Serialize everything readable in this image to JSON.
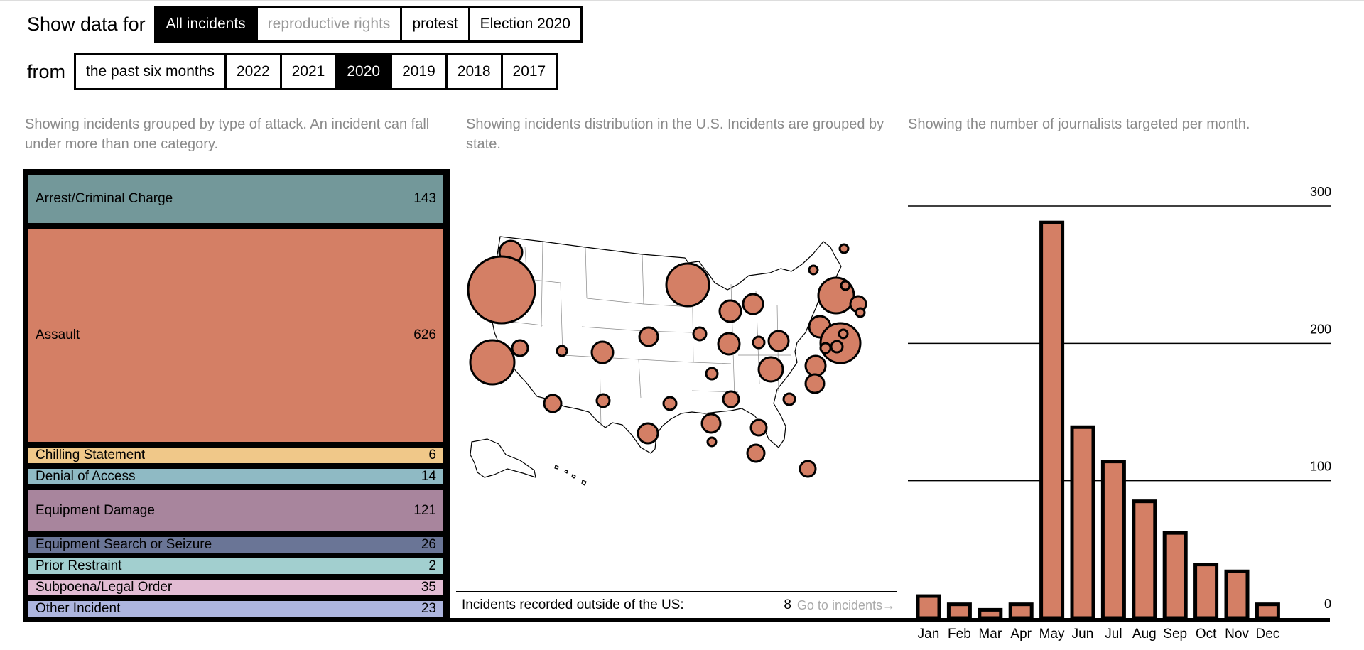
{
  "filters": {
    "show_label": "Show data for",
    "topics": [
      {
        "label": "All incidents",
        "active": true,
        "muted": false
      },
      {
        "label": "reproductive rights",
        "active": false,
        "muted": true
      },
      {
        "label": "protest",
        "active": false,
        "muted": false
      },
      {
        "label": "Election 2020",
        "active": false,
        "muted": false
      }
    ],
    "from_label": "from",
    "periods": [
      {
        "label": "the past six months",
        "active": false
      },
      {
        "label": "2022",
        "active": false
      },
      {
        "label": "2021",
        "active": false
      },
      {
        "label": "2020",
        "active": true
      },
      {
        "label": "2019",
        "active": false
      },
      {
        "label": "2018",
        "active": false
      },
      {
        "label": "2017",
        "active": false
      }
    ]
  },
  "descriptions": {
    "categories": "Showing incidents grouped by type of attack. An incident can fall under more than one category.",
    "map": "Showing incidents distribution in the U.S. Incidents are grouped by state.",
    "monthly": "Showing the number of journalists targeted per month."
  },
  "categories": [
    {
      "label": "Arrest/Criminal Charge",
      "count": 143,
      "color": "#73989a"
    },
    {
      "label": "Assault",
      "count": 626,
      "color": "#d47f65"
    },
    {
      "label": "Chilling Statement",
      "count": 6,
      "color": "#f0c889"
    },
    {
      "label": "Denial of Access",
      "count": 14,
      "color": "#8fbac4"
    },
    {
      "label": "Equipment Damage",
      "count": 121,
      "color": "#a8859d"
    },
    {
      "label": "Equipment Search or Seizure",
      "count": 26,
      "color": "#6a7596"
    },
    {
      "label": "Prior Restraint",
      "count": 2,
      "color": "#a2cfcf"
    },
    {
      "label": "Subpoena/Legal Order",
      "count": 35,
      "color": "#e2bcd3"
    },
    {
      "label": "Other Incident",
      "count": 23,
      "color": "#adb5de"
    }
  ],
  "outside_us": {
    "label": "Incidents recorded outside of the US:",
    "count": "8",
    "link": "Go to incidents→"
  },
  "colors": {
    "accent": "#d47f65",
    "text_muted": "#8a8a8a"
  },
  "chart_data": {
    "type": "bar",
    "categories": [
      "Jan",
      "Feb",
      "Mar",
      "Apr",
      "May",
      "Jun",
      "Jul",
      "Aug",
      "Sep",
      "Oct",
      "Nov",
      "Dec"
    ],
    "values": [
      16,
      10,
      6,
      10,
      288,
      139,
      114,
      85,
      62,
      39,
      34,
      10
    ],
    "ylim": [
      0,
      300
    ],
    "yticks": [
      0,
      100,
      200,
      300
    ],
    "grid": true,
    "color": "#d47f65"
  }
}
